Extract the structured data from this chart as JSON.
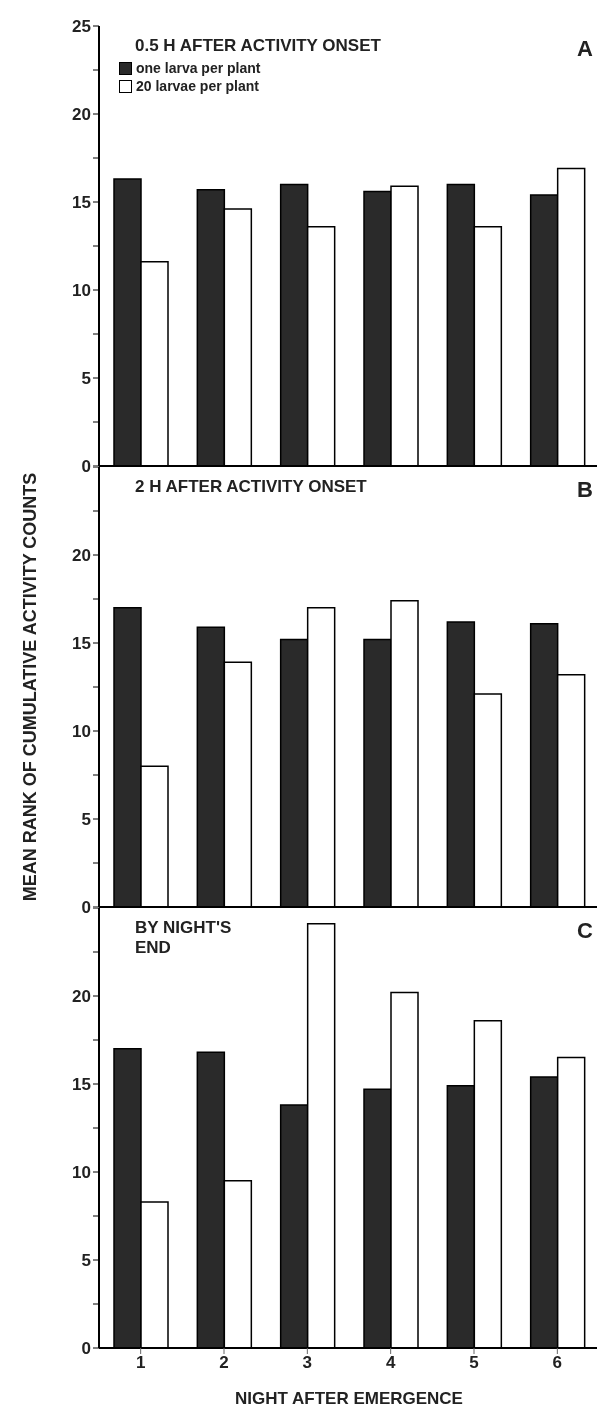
{
  "chart_data": [
    {
      "type": "bar",
      "title": "0.5 H AFTER ACTIVITY ONSET",
      "categories": [
        "1",
        "2",
        "3",
        "4",
        "5",
        "6"
      ],
      "series": [
        {
          "name": "one larva per plant",
          "color": "#2a2a2a",
          "values": [
            16.3,
            15.7,
            16.0,
            15.6,
            16.0,
            15.4
          ]
        },
        {
          "name": "20 larvae per plant",
          "color": "#ffffff",
          "values": [
            11.6,
            14.6,
            13.6,
            15.9,
            13.6,
            16.9
          ]
        }
      ],
      "ylim": [
        0,
        25
      ],
      "yticks": [
        0,
        {
          "value": 2.5,
          "label": null
        },
        5,
        {
          "value": 7.5,
          "label": null
        },
        10,
        {
          "value": 12.5,
          "label": null
        },
        15,
        {
          "value": 17.5,
          "label": null
        },
        20,
        {
          "value": 22.5,
          "label": null
        },
        25
      ],
      "legend": "top left",
      "tick_labels": "y",
      "annotations": [
        "A"
      ]
    },
    {
      "type": "bar",
      "title": "2 H AFTER ACTIVITY ONSET",
      "ylabel": "MEAN RANK OF CUMULATIVE ACTIVITY COUNTS",
      "categories": [
        "1",
        "2",
        "3",
        "4",
        "5",
        "6"
      ],
      "series": [
        {
          "color": "#2a2a2a",
          "values": [
            17.0,
            15.9,
            15.2,
            15.2,
            16.2,
            16.1
          ]
        },
        {
          "color": "#ffffff",
          "values": [
            8.0,
            13.9,
            17.0,
            17.4,
            12.1,
            13.2
          ]
        }
      ],
      "ylim": [
        0,
        25
      ],
      "yticks": [
        0,
        {
          "value": 2.5,
          "label": null
        },
        5,
        {
          "value": 7.5,
          "label": null
        },
        10,
        {
          "value": 12.5,
          "label": null
        },
        15,
        {
          "value": 17.5,
          "label": null
        },
        20,
        {
          "value": 22.5,
          "label": null
        },
        {
          "value": 25,
          "label": null
        }
      ],
      "tick_labels": "y",
      "annotations": [
        "B"
      ]
    },
    {
      "type": "bar",
      "title": "BY NIGHT'S END",
      "xlabel": "NIGHT AFTER EMERGENCE",
      "categories": [
        "1",
        "2",
        "3",
        "4",
        "5",
        "6"
      ],
      "series": [
        {
          "color": "#2a2a2a",
          "values": [
            17.0,
            16.8,
            13.8,
            14.7,
            14.9,
            15.4
          ]
        },
        {
          "color": "#ffffff",
          "values": [
            8.3,
            9.5,
            24.1,
            20.2,
            18.6,
            16.5
          ]
        }
      ],
      "ylim": [
        0,
        25
      ],
      "yticks": [
        0,
        {
          "value": 2.5,
          "label": null
        },
        5,
        {
          "value": 7.5,
          "label": null
        },
        10,
        {
          "value": 12.5,
          "label": null
        },
        15,
        {
          "value": 17.5,
          "label": null
        },
        20,
        {
          "value": 22.5,
          "label": null
        },
        {
          "value": 25,
          "label": null
        }
      ],
      "annotations": [
        "C"
      ]
    }
  ]
}
